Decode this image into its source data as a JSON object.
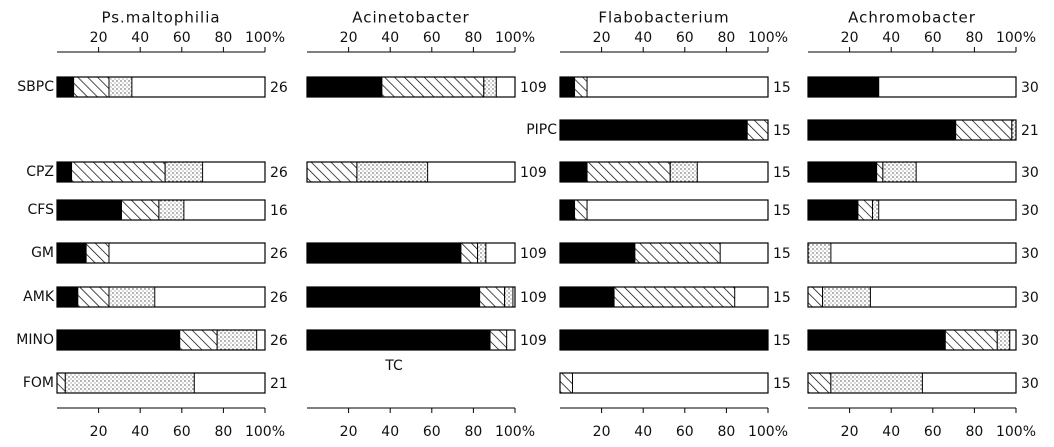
{
  "chart_data": [
    {
      "type": "bar",
      "orientation": "horizontal",
      "stacked": true,
      "title": "Ps.maltophilia",
      "label_side": "left",
      "categories": [
        "SBPC",
        null,
        "CPZ",
        "CFS",
        "GM",
        "AMK",
        "MINO",
        "FOM"
      ],
      "xlim": [
        0,
        100
      ],
      "xticks": [
        20,
        40,
        60,
        80,
        {
          "value": 100,
          "label": "100%"
        }
      ],
      "series": [
        {
          "pattern": "solid",
          "color": "#000000",
          "values": [
            8,
            null,
            7,
            31,
            14,
            10,
            59,
            0
          ]
        },
        {
          "pattern": "hatch",
          "color": "#000000",
          "values": [
            17,
            null,
            45,
            18,
            11,
            15,
            18,
            4
          ]
        },
        {
          "pattern": "dots",
          "color": "#000000",
          "values": [
            11,
            null,
            18,
            12,
            0,
            22,
            19,
            62
          ]
        }
      ],
      "counts": [
        26,
        null,
        26,
        16,
        26,
        26,
        26,
        21
      ]
    },
    {
      "type": "bar",
      "orientation": "horizontal",
      "stacked": true,
      "title": "Acinetobacter",
      "label_side": "below",
      "categories": [
        null,
        null,
        null,
        null,
        null,
        null,
        "TC",
        null
      ],
      "xlim": [
        0,
        100
      ],
      "xticks": [
        20,
        40,
        60,
        80,
        {
          "value": 100,
          "label": "100%"
        }
      ],
      "series": [
        {
          "pattern": "solid",
          "color": "#000000",
          "values": [
            36,
            null,
            0,
            null,
            74,
            83,
            88,
            null
          ]
        },
        {
          "pattern": "hatch",
          "color": "#000000",
          "values": [
            49,
            null,
            24,
            null,
            8,
            12,
            8,
            null
          ]
        },
        {
          "pattern": "dots",
          "color": "#000000",
          "values": [
            6,
            null,
            34,
            null,
            4,
            4,
            0,
            null
          ]
        }
      ],
      "counts": [
        109,
        null,
        109,
        null,
        109,
        109,
        109,
        null
      ]
    },
    {
      "type": "bar",
      "orientation": "horizontal",
      "stacked": true,
      "title": "Flabobacterium",
      "label_side": "left",
      "categories": [
        null,
        "PIPC",
        null,
        null,
        null,
        null,
        null,
        null
      ],
      "xlim": [
        0,
        100
      ],
      "xticks": [
        20,
        40,
        60,
        80,
        {
          "value": 100,
          "label": "100%"
        }
      ],
      "series": [
        {
          "pattern": "solid",
          "color": "#000000",
          "values": [
            7,
            90,
            13,
            7,
            36,
            26,
            100,
            0
          ]
        },
        {
          "pattern": "hatch",
          "color": "#000000",
          "values": [
            6,
            10,
            40,
            6,
            41,
            58,
            0,
            6
          ]
        },
        {
          "pattern": "dots",
          "color": "#000000",
          "values": [
            0,
            0,
            13,
            0,
            0,
            0,
            0,
            0
          ]
        }
      ],
      "counts": [
        15,
        15,
        15,
        15,
        15,
        15,
        15,
        15
      ]
    },
    {
      "type": "bar",
      "orientation": "horizontal",
      "stacked": true,
      "title": "Achromobacter",
      "label_side": "left",
      "categories": [
        null,
        null,
        null,
        null,
        null,
        null,
        null,
        null
      ],
      "xlim": [
        0,
        100
      ],
      "xticks": [
        20,
        40,
        60,
        80,
        {
          "value": 100,
          "label": "100%"
        }
      ],
      "series": [
        {
          "pattern": "solid",
          "color": "#000000",
          "values": [
            34,
            71,
            33,
            24,
            0,
            0,
            66,
            0
          ]
        },
        {
          "pattern": "hatch",
          "color": "#000000",
          "values": [
            0,
            27,
            3,
            7,
            0,
            7,
            25,
            11
          ]
        },
        {
          "pattern": "dots",
          "color": "#000000",
          "values": [
            0,
            2,
            16,
            3,
            11,
            23,
            6,
            44
          ]
        }
      ],
      "counts": [
        30,
        21,
        30,
        30,
        30,
        30,
        30,
        30
      ]
    }
  ]
}
